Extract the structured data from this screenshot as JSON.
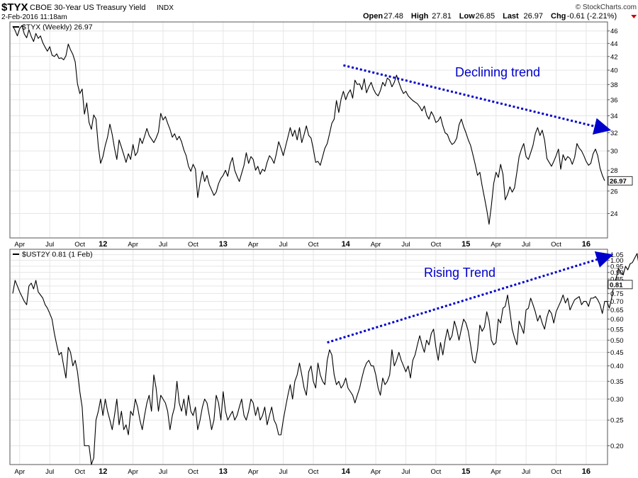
{
  "header": {
    "symbol": "$TYX",
    "description": "CBOE 30-Year US Treasury Yield",
    "exchange": "INDX",
    "date_time": "2-Feb-2016 11:18am",
    "watermark": "© StockCharts.com",
    "quote": [
      {
        "label": "Open",
        "value": "27.48"
      },
      {
        "label": "High",
        "value": "27.81"
      },
      {
        "label": "Low",
        "value": "26.85"
      },
      {
        "label": "Last",
        "value": "26.97"
      },
      {
        "label": "Chg",
        "value": "-0.61 (-2.21%)"
      }
    ],
    "chg_arrow": "down-triangle-icon"
  },
  "colors": {
    "background": "#ffffff",
    "plot_background": "#ffffff",
    "grid": "#e6e6e6",
    "border": "#555555",
    "line": "#000000",
    "annotation": "#0000cc",
    "down": "#cc0000"
  },
  "chart_data": [
    {
      "type": "line",
      "legend": "$TYX (Weekly) 26.97",
      "legend_placement": "top-left",
      "y_scale": "log",
      "ylim": [
        22,
        47.5
      ],
      "y_ticks": [
        24,
        26,
        28,
        30,
        32,
        34,
        36,
        38,
        40,
        42,
        44,
        46
      ],
      "grid": true,
      "last_value_label": "26.97",
      "x_ticks": [
        "Apr",
        "Jul",
        "Oct",
        "12",
        "Apr",
        "Jul",
        "Oct",
        "13",
        "Apr",
        "Jul",
        "Oct",
        "14",
        "Apr",
        "Jul",
        "Oct",
        "15",
        "Apr",
        "Jul",
        "Oct",
        "16"
      ],
      "x_tick_years": [
        "12",
        "13",
        "14",
        "15",
        "16"
      ],
      "x_tick_index": [
        3,
        16,
        29,
        39,
        52,
        65,
        78,
        91,
        104,
        117,
        130,
        144,
        157,
        170,
        183,
        196,
        209,
        222,
        235,
        248
      ],
      "y": [
        46.8,
        46.1,
        45.2,
        46.4,
        46.9,
        45.5,
        44.9,
        46.2,
        45.1,
        44.3,
        45.6,
        44.8,
        45.2,
        44.1,
        43.4,
        42.8,
        43.5,
        42.2,
        42.0,
        42.4,
        41.7,
        41.8,
        41.5,
        42.1,
        43.9,
        43.0,
        42.3,
        41.2,
        38.1,
        36.8,
        37.4,
        34.2,
        35.6,
        33.2,
        32.4,
        34.1,
        33.6,
        30.5,
        28.7,
        29.4,
        30.6,
        31.5,
        33.0,
        31.8,
        30.3,
        29.1,
        31.2,
        30.4,
        29.6,
        28.8,
        29.7,
        29.1,
        30.7,
        29.5,
        29.9,
        31.4,
        30.8,
        31.6,
        32.5,
        31.7,
        31.3,
        30.9,
        31.4,
        32.1,
        34.3,
        33.5,
        33.9,
        33.1,
        32.4,
        31.5,
        31.9,
        31.2,
        31.6,
        31.0,
        30.1,
        29.5,
        28.4,
        27.9,
        28.6,
        28.1,
        25.4,
        26.8,
        27.9,
        26.9,
        27.5,
        26.6,
        26.1,
        25.6,
        25.9,
        26.7,
        27.2,
        27.5,
        28.0,
        27.4,
        28.6,
        29.3,
        28.0,
        27.4,
        26.9,
        27.7,
        28.5,
        29.8,
        28.7,
        29.4,
        29.1,
        28.0,
        28.4,
        27.6,
        28.1,
        27.9,
        28.8,
        29.5,
        29.2,
        28.7,
        29.7,
        31.0,
        30.3,
        29.5,
        30.5,
        31.5,
        32.6,
        31.6,
        32.3,
        31.2,
        32.6,
        30.9,
        31.8,
        32.8,
        31.7,
        31.4,
        30.2,
        28.8,
        28.9,
        28.5,
        29.4,
        30.3,
        30.8,
        31.9,
        33.1,
        33.6,
        35.9,
        34.4,
        36.1,
        37.1,
        36.0,
        36.8,
        37.3,
        36.2,
        38.6,
        38.0,
        38.1,
        37.3,
        38.8,
        36.9,
        37.7,
        38.3,
        37.4,
        36.8,
        36.5,
        37.2,
        38.3,
        37.8,
        38.9,
        38.6,
        37.7,
        38.3,
        39.3,
        38.3,
        37.4,
        36.8,
        37.1,
        36.5,
        36.2,
        35.9,
        35.7,
        35.5,
        35.1,
        34.6,
        35.2,
        34.1,
        33.6,
        34.5,
        34.0,
        33.2,
        33.4,
        33.9,
        32.8,
        32.0,
        31.8,
        31.1,
        30.7,
        30.9,
        31.4,
        32.9,
        33.6,
        32.7,
        32.0,
        31.2,
        30.6,
        29.6,
        28.6,
        27.5,
        27.8,
        26.5,
        25.4,
        24.3,
        23.1,
        24.7,
        26.7,
        27.8,
        27.3,
        28.6,
        27.6,
        25.2,
        25.7,
        26.4,
        25.9,
        26.3,
        27.8,
        29.4,
        30.2,
        30.8,
        29.4,
        29.1,
        29.8,
        30.6,
        31.9,
        32.6,
        31.7,
        32.3,
        31.2,
        29.2,
        28.8,
        28.4,
        28.9,
        29.5,
        30.2,
        28.1,
        29.6,
        29.0,
        29.4,
        29.2,
        28.6,
        29.3,
        30.8,
        30.3,
        30.0,
        29.5,
        28.9,
        28.5,
        28.7,
        29.7,
        30.2,
        29.5,
        28.2,
        27.5,
        26.97
      ]
    },
    {
      "type": "line",
      "legend": "$UST2Y 0.81 (1 Feb)",
      "legend_placement": "top-left",
      "y_scale": "log",
      "ylim": [
        0.17,
        1.1
      ],
      "y_ticks": [
        0.2,
        0.25,
        0.3,
        0.35,
        0.4,
        0.45,
        0.5,
        0.55,
        0.6,
        0.65,
        0.7,
        0.75,
        0.8,
        0.85,
        0.9,
        0.95,
        1.0,
        1.05
      ],
      "y_tick_labels": [
        "0.20",
        "0.25",
        "0.30",
        "0.35",
        "0.40",
        "0.45",
        "0.50",
        "0.55",
        "0.60",
        "0.65",
        "0.70",
        "0.75",
        "0.80",
        "0.85",
        "0.90",
        "0.95",
        "1.00",
        "1.05"
      ],
      "grid": true,
      "last_value_label": "0.81",
      "x_ticks": [
        "Apr",
        "Jul",
        "Oct",
        "12",
        "Apr",
        "Jul",
        "Oct",
        "13",
        "Apr",
        "Jul",
        "Oct",
        "14",
        "Apr",
        "Jul",
        "Oct",
        "15",
        "Apr",
        "Jul",
        "Oct",
        "16"
      ],
      "x_tick_years": [
        "12",
        "13",
        "14",
        "15",
        "16"
      ],
      "x_tick_index": [
        3,
        16,
        29,
        39,
        52,
        65,
        78,
        91,
        104,
        117,
        130,
        144,
        157,
        170,
        183,
        196,
        209,
        222,
        235,
        248
      ],
      "y": [
        0.75,
        0.84,
        0.8,
        0.76,
        0.73,
        0.7,
        0.68,
        0.8,
        0.82,
        0.78,
        0.84,
        0.76,
        0.74,
        0.72,
        0.68,
        0.66,
        0.63,
        0.6,
        0.53,
        0.48,
        0.44,
        0.45,
        0.4,
        0.36,
        0.47,
        0.45,
        0.4,
        0.42,
        0.38,
        0.32,
        0.28,
        0.2,
        0.2,
        0.2,
        0.17,
        0.18,
        0.25,
        0.27,
        0.3,
        0.26,
        0.3,
        0.27,
        0.25,
        0.23,
        0.26,
        0.3,
        0.24,
        0.27,
        0.23,
        0.24,
        0.22,
        0.27,
        0.26,
        0.3,
        0.28,
        0.25,
        0.23,
        0.26,
        0.29,
        0.31,
        0.27,
        0.37,
        0.33,
        0.27,
        0.31,
        0.3,
        0.29,
        0.27,
        0.23,
        0.26,
        0.28,
        0.35,
        0.29,
        0.27,
        0.3,
        0.26,
        0.31,
        0.27,
        0.26,
        0.28,
        0.23,
        0.25,
        0.28,
        0.3,
        0.29,
        0.26,
        0.23,
        0.25,
        0.31,
        0.29,
        0.25,
        0.32,
        0.27,
        0.25,
        0.26,
        0.27,
        0.25,
        0.26,
        0.28,
        0.3,
        0.26,
        0.25,
        0.27,
        0.3,
        0.29,
        0.26,
        0.28,
        0.25,
        0.26,
        0.28,
        0.24,
        0.26,
        0.28,
        0.25,
        0.24,
        0.22,
        0.22,
        0.25,
        0.28,
        0.31,
        0.34,
        0.3,
        0.35,
        0.37,
        0.41,
        0.37,
        0.33,
        0.31,
        0.38,
        0.4,
        0.35,
        0.33,
        0.41,
        0.37,
        0.35,
        0.34,
        0.42,
        0.46,
        0.44,
        0.37,
        0.34,
        0.35,
        0.33,
        0.34,
        0.36,
        0.33,
        0.32,
        0.31,
        0.29,
        0.31,
        0.33,
        0.36,
        0.39,
        0.41,
        0.42,
        0.4,
        0.4,
        0.37,
        0.33,
        0.31,
        0.36,
        0.34,
        0.35,
        0.37,
        0.46,
        0.4,
        0.42,
        0.45,
        0.42,
        0.4,
        0.38,
        0.4,
        0.36,
        0.42,
        0.44,
        0.48,
        0.52,
        0.48,
        0.45,
        0.5,
        0.48,
        0.53,
        0.55,
        0.47,
        0.42,
        0.49,
        0.44,
        0.5,
        0.55,
        0.5,
        0.52,
        0.59,
        0.55,
        0.5,
        0.55,
        0.6,
        0.58,
        0.54,
        0.48,
        0.42,
        0.41,
        0.46,
        0.57,
        0.54,
        0.56,
        0.64,
        0.59,
        0.5,
        0.48,
        0.49,
        0.6,
        0.58,
        0.66,
        0.67,
        0.74,
        0.64,
        0.55,
        0.51,
        0.48,
        0.59,
        0.56,
        0.53,
        0.65,
        0.66,
        0.72,
        0.68,
        0.64,
        0.59,
        0.62,
        0.58,
        0.55,
        0.61,
        0.65,
        0.63,
        0.58,
        0.64,
        0.67,
        0.7,
        0.74,
        0.69,
        0.72,
        0.65,
        0.68,
        0.71,
        0.72,
        0.73,
        0.68,
        0.7,
        0.7,
        0.67,
        0.72,
        0.72,
        0.73,
        0.71,
        0.68,
        0.63,
        0.7,
        0.7,
        0.66,
        0.72,
        0.81,
        0.86,
        0.93,
        0.9,
        0.88,
        0.95,
        0.92,
        0.97,
        0.98,
        1.02,
        1.06,
        0.94,
        0.84,
        0.89,
        0.78,
        0.81
      ],
      "series_name": "$UST2Y"
    }
  ],
  "annotations": [
    {
      "text": "Declining trend",
      "panel": 0,
      "arrow_from": [
        143,
        40.7
      ],
      "arrow_to": [
        257,
        32.4
      ]
    },
    {
      "text": "Rising Trend",
      "panel": 1,
      "arrow_from": [
        136,
        0.49
      ],
      "arrow_to": [
        258,
        1.04
      ]
    }
  ]
}
